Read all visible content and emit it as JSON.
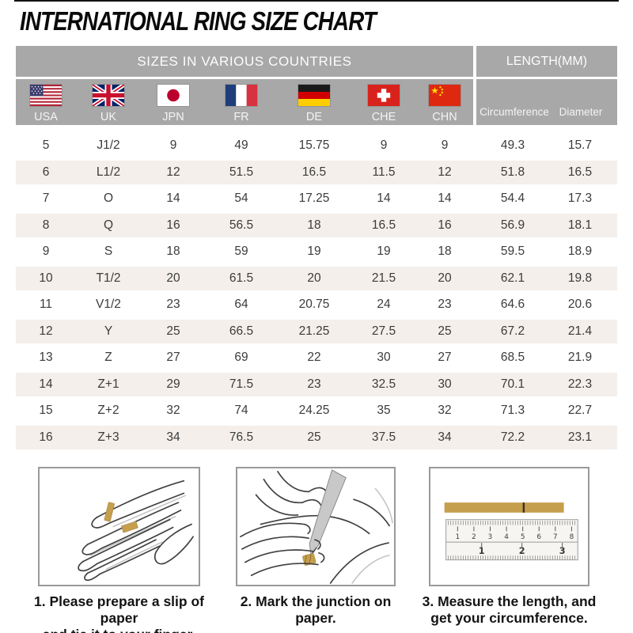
{
  "page": {
    "title": "INTERNATIONAL RING SIZE CHART"
  },
  "table": {
    "left_header": "SIZES IN VARIOUS COUNTRIES",
    "right_header": "LENGTH(MM)",
    "countries": [
      {
        "code": "USA",
        "icon": "usa-flag-icon"
      },
      {
        "code": "UK",
        "icon": "uk-flag-icon"
      },
      {
        "code": "JPN",
        "icon": "japan-flag-icon"
      },
      {
        "code": "FR",
        "icon": "france-flag-icon"
      },
      {
        "code": "DE",
        "icon": "germany-flag-icon"
      },
      {
        "code": "CHE",
        "icon": "switzerland-flag-icon"
      },
      {
        "code": "CHN",
        "icon": "china-flag-icon"
      }
    ],
    "length_columns": [
      "Circumference",
      "Diameter"
    ]
  },
  "chart_data": {
    "type": "table",
    "column_groups": [
      "SIZES IN VARIOUS COUNTRIES",
      "LENGTH(MM)"
    ],
    "columns": [
      "USA",
      "UK",
      "JPN",
      "FR",
      "DE",
      "CHE",
      "CHN",
      "Circumference",
      "Diameter"
    ],
    "rows": [
      [
        "5",
        "J1/2",
        "9",
        "49",
        "15.75",
        "9",
        "9",
        "49.3",
        "15.7"
      ],
      [
        "6",
        "L1/2",
        "12",
        "51.5",
        "16.5",
        "11.5",
        "12",
        "51.8",
        "16.5"
      ],
      [
        "7",
        "O",
        "14",
        "54",
        "17.25",
        "14",
        "14",
        "54.4",
        "17.3"
      ],
      [
        "8",
        "Q",
        "16",
        "56.5",
        "18",
        "16.5",
        "16",
        "56.9",
        "18.1"
      ],
      [
        "9",
        "S",
        "18",
        "59",
        "19",
        "19",
        "18",
        "59.5",
        "18.9"
      ],
      [
        "10",
        "T1/2",
        "20",
        "61.5",
        "20",
        "21.5",
        "20",
        "62.1",
        "19.8"
      ],
      [
        "11",
        "V1/2",
        "23",
        "64",
        "20.75",
        "24",
        "23",
        "64.6",
        "20.6"
      ],
      [
        "12",
        "Y",
        "25",
        "66.5",
        "21.25",
        "27.5",
        "25",
        "67.2",
        "21.4"
      ],
      [
        "13",
        "Z",
        "27",
        "69",
        "22",
        "30",
        "27",
        "68.5",
        "21.9"
      ],
      [
        "14",
        "Z+1",
        "29",
        "71.5",
        "23",
        "32.5",
        "30",
        "70.1",
        "22.3"
      ],
      [
        "15",
        "Z+2",
        "32",
        "74",
        "24.25",
        "35",
        "32",
        "71.3",
        "22.7"
      ],
      [
        "16",
        "Z+3",
        "34",
        "76.5",
        "25",
        "37.5",
        "34",
        "72.2",
        "23.1"
      ]
    ]
  },
  "instructions": {
    "steps": [
      {
        "line1": "1. Please prepare a slip of paper",
        "line2": "and tie it to your finger."
      },
      {
        "line1": "2. Mark the junction on paper.",
        "line2": ""
      },
      {
        "line1": "3. Measure the length, and",
        "line2": "get your circumference."
      }
    ],
    "ruler": {
      "top_scale": [
        "1",
        "2",
        "3",
        "4",
        "5",
        "6",
        "7",
        "8"
      ],
      "bottom_scale": [
        "1",
        "2",
        "3"
      ]
    }
  },
  "colors": {
    "header_gray": "#a8a8a8",
    "row_stripe": "#f4efeb",
    "paper_gold": "#c69f4e"
  }
}
